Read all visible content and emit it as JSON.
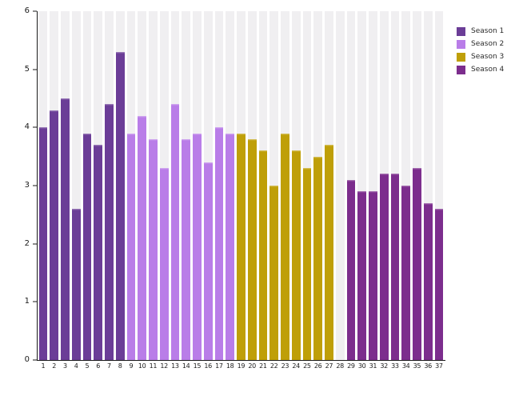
{
  "chart_data": {
    "type": "bar",
    "title": "",
    "xlabel": "",
    "ylabel": "",
    "ylim": [
      0,
      6
    ],
    "yticks": [
      "0",
      "1",
      "2",
      "3",
      "4",
      "5",
      "6"
    ],
    "grid": "column-stripes",
    "stripe_color": "#f0eff1",
    "axis_color": "#1a1a1a",
    "legend_position": "top-right",
    "categories": [
      "1",
      "2",
      "3",
      "4",
      "5",
      "6",
      "7",
      "8",
      "9",
      "10",
      "11",
      "12",
      "13",
      "14",
      "15",
      "16",
      "17",
      "18",
      "19",
      "20",
      "21",
      "22",
      "23",
      "24",
      "25",
      "26",
      "27",
      "28",
      "29",
      "30",
      "31",
      "32",
      "33",
      "34",
      "35",
      "36",
      "37"
    ],
    "missing_categories": [
      "28"
    ],
    "series": [
      {
        "name": "Season 1",
        "color": "#6b3d97",
        "x": [
          "1",
          "2",
          "3",
          "4",
          "5",
          "6",
          "7",
          "8"
        ],
        "values": [
          4.0,
          4.3,
          4.5,
          2.6,
          3.9,
          3.7,
          4.4,
          5.3
        ]
      },
      {
        "name": "Season 2",
        "color": "#b97de8",
        "x": [
          "9",
          "10",
          "11",
          "12",
          "13",
          "14",
          "15",
          "16",
          "17",
          "18"
        ],
        "values": [
          3.9,
          4.2,
          3.8,
          3.3,
          4.4,
          3.8,
          3.9,
          3.4,
          4.0,
          3.9
        ]
      },
      {
        "name": "Season 3",
        "color": "#bf9f08",
        "x": [
          "19",
          "20",
          "21",
          "22",
          "23",
          "24",
          "25",
          "26",
          "27"
        ],
        "values": [
          3.9,
          3.8,
          3.6,
          3.0,
          3.9,
          3.6,
          3.3,
          3.5,
          3.7
        ]
      },
      {
        "name": "Season 4",
        "color": "#7c2d8d",
        "x": [
          "29",
          "30",
          "31",
          "32",
          "33",
          "34",
          "35",
          "36",
          "37"
        ],
        "values": [
          3.1,
          2.9,
          2.9,
          3.2,
          3.2,
          3.0,
          3.3,
          2.7,
          2.6
        ]
      }
    ]
  },
  "legend": {
    "items": [
      {
        "label": "Season 1",
        "color": "#6b3d97"
      },
      {
        "label": "Season 2",
        "color": "#b97de8"
      },
      {
        "label": "Season 3",
        "color": "#bf9f08"
      },
      {
        "label": "Season 4",
        "color": "#7c2d8d"
      }
    ]
  }
}
